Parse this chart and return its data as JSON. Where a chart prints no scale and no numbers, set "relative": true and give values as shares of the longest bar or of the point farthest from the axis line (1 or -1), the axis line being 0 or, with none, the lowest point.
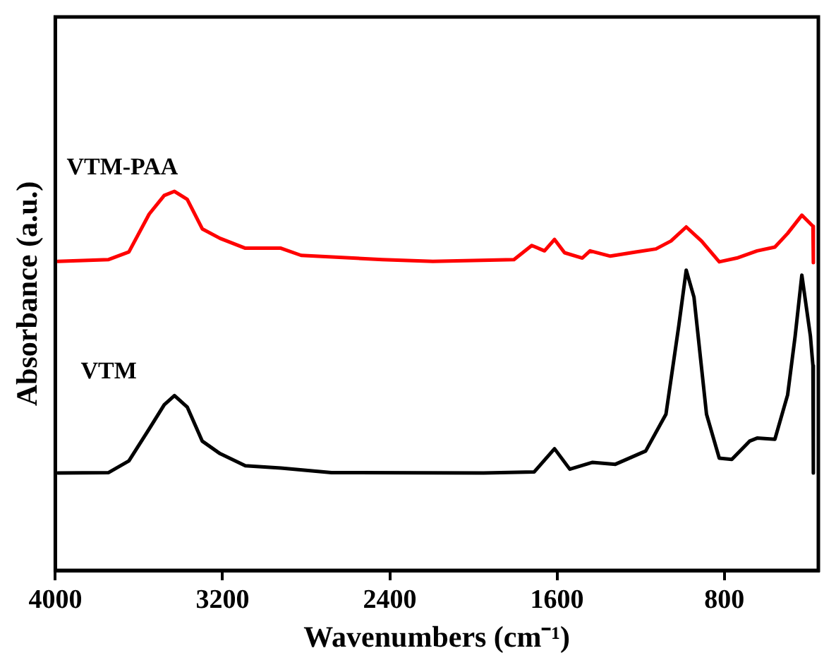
{
  "chart_data": {
    "type": "line",
    "xlabel": "Wavenumbers (cm⁻¹)",
    "ylabel": "Absorbance (a.u.)",
    "relative": true,
    "xlim": [
      4000,
      350
    ],
    "xticks": [
      4000,
      3200,
      2400,
      1600,
      800
    ],
    "grid": false,
    "legend": false,
    "marker": "none",
    "line_style": "solid",
    "series": [
      {
        "name": "VTM-PAA",
        "color": "#ff0000",
        "x": [
          3988,
          3745,
          3648,
          3551,
          3479,
          3430,
          3369,
          3297,
          3212,
          3091,
          2921,
          2824,
          2436,
          2194,
          1806,
          1721,
          1660,
          1612,
          1564,
          1479,
          1442,
          1345,
          1224,
          1127,
          1055,
          982,
          909,
          824,
          740,
          643,
          558,
          497,
          429,
          376,
          374
        ],
        "values": [
          0.815,
          0.82,
          0.84,
          0.94,
          0.989,
          1,
          0.979,
          0.901,
          0.876,
          0.85,
          0.85,
          0.831,
          0.82,
          0.815,
          0.82,
          0.857,
          0.843,
          0.873,
          0.838,
          0.824,
          0.843,
          0.829,
          0.84,
          0.848,
          0.869,
          0.906,
          0.869,
          0.814,
          0.824,
          0.843,
          0.853,
          0.889,
          0.937,
          0.908,
          0.812
        ]
      },
      {
        "name": "VTM",
        "color": "#000000",
        "x": [
          3988,
          3745,
          3648,
          3551,
          3479,
          3430,
          3369,
          3297,
          3212,
          3091,
          2921,
          2679,
          1951,
          1709,
          1612,
          1539,
          1430,
          1321,
          1176,
          1079,
          1018,
          982,
          945,
          885,
          824,
          764,
          679,
          643,
          558,
          497,
          461,
          429,
          388,
          376,
          374
        ],
        "values": [
          0.257,
          0.258,
          0.289,
          0.373,
          0.437,
          0.461,
          0.431,
          0.341,
          0.308,
          0.276,
          0.27,
          0.258,
          0.257,
          0.26,
          0.321,
          0.267,
          0.285,
          0.28,
          0.315,
          0.412,
          0.644,
          0.792,
          0.721,
          0.412,
          0.296,
          0.293,
          0.341,
          0.349,
          0.346,
          0.463,
          0.618,
          0.779,
          0.618,
          0.54,
          0.257
        ]
      }
    ]
  }
}
